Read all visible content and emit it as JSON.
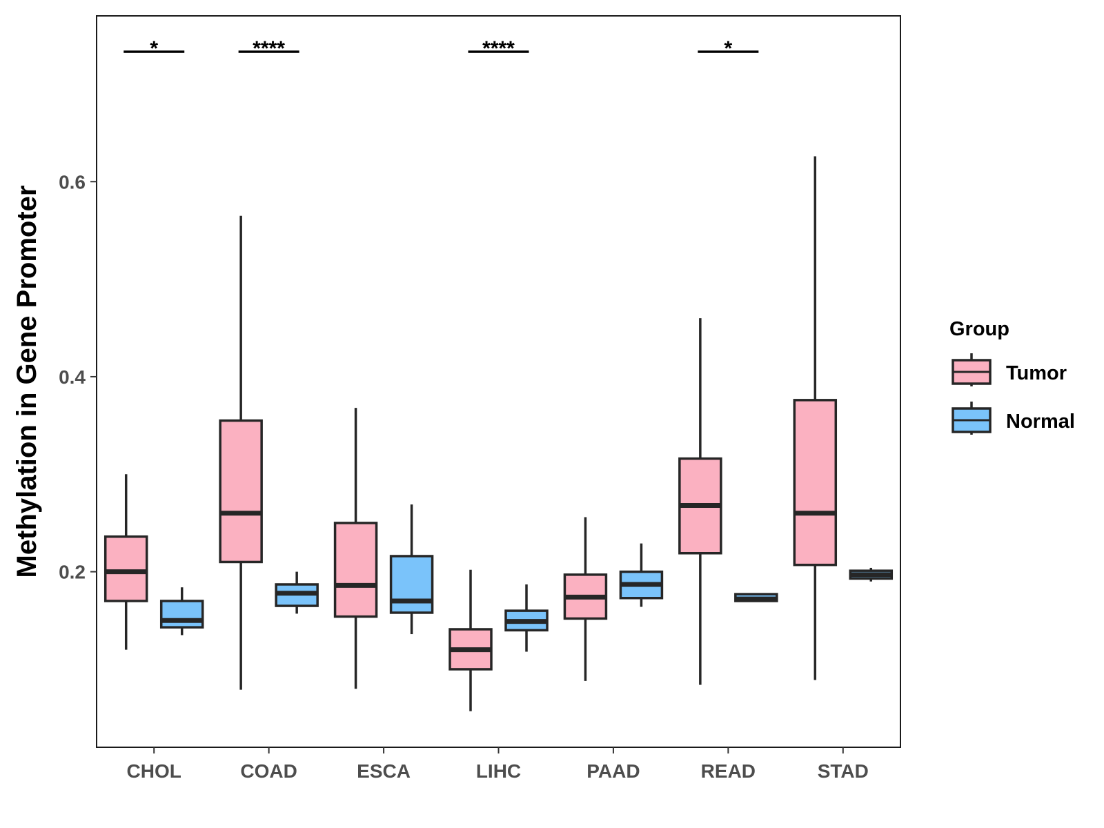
{
  "chart_data": {
    "type": "boxplot",
    "title": "",
    "xlabel": "",
    "ylabel": "Methylation in Gene Promoter",
    "ylim": [
      0.02,
      0.77
    ],
    "yticks": [
      0.2,
      0.4,
      0.6
    ],
    "ytick_labels": [
      "0.2",
      "0.4",
      "0.6"
    ],
    "grid": false,
    "categories": [
      "CHOL",
      "COAD",
      "ESCA",
      "LIHC",
      "PAAD",
      "READ",
      "STAD"
    ],
    "legend": {
      "title": "Group",
      "position": "right",
      "entries": [
        {
          "name": "Tumor",
          "color": "#fbb1c1"
        },
        {
          "name": "Normal",
          "color": "#7ac3fa"
        }
      ]
    },
    "series": [
      {
        "name": "Tumor",
        "color": "#fbb1c1",
        "boxes": [
          {
            "min": 0.12,
            "q1": 0.17,
            "median": 0.2,
            "q3": 0.236,
            "max": 0.3
          },
          {
            "min": 0.079,
            "q1": 0.21,
            "median": 0.26,
            "q3": 0.355,
            "max": 0.565
          },
          {
            "min": 0.08,
            "q1": 0.154,
            "median": 0.186,
            "q3": 0.25,
            "max": 0.368
          },
          {
            "min": 0.057,
            "q1": 0.1,
            "median": 0.12,
            "q3": 0.141,
            "max": 0.202
          },
          {
            "min": 0.088,
            "q1": 0.152,
            "median": 0.174,
            "q3": 0.197,
            "max": 0.256
          },
          {
            "min": 0.084,
            "q1": 0.219,
            "median": 0.268,
            "q3": 0.316,
            "max": 0.46
          },
          {
            "min": 0.089,
            "q1": 0.207,
            "median": 0.26,
            "q3": 0.376,
            "max": 0.626
          }
        ]
      },
      {
        "name": "Normal",
        "color": "#7ac3fa",
        "boxes": [
          {
            "min": 0.135,
            "q1": 0.143,
            "median": 0.15,
            "q3": 0.17,
            "max": 0.184
          },
          {
            "min": 0.157,
            "q1": 0.165,
            "median": 0.178,
            "q3": 0.187,
            "max": 0.2
          },
          {
            "min": 0.136,
            "q1": 0.158,
            "median": 0.17,
            "q3": 0.216,
            "max": 0.269
          },
          {
            "min": 0.118,
            "q1": 0.14,
            "median": 0.149,
            "q3": 0.16,
            "max": 0.187
          },
          {
            "min": 0.164,
            "q1": 0.173,
            "median": 0.187,
            "q3": 0.2,
            "max": 0.229
          },
          {
            "min": 0.17,
            "q1": 0.17,
            "median": 0.172,
            "q3": 0.177,
            "max": 0.177
          },
          {
            "min": 0.19,
            "q1": 0.193,
            "median": 0.197,
            "q3": 0.201,
            "max": 0.204
          }
        ]
      }
    ],
    "annotations": [
      {
        "category": "CHOL",
        "label": "*"
      },
      {
        "category": "COAD",
        "label": "****"
      },
      {
        "category": "LIHC",
        "label": "****"
      },
      {
        "category": "READ",
        "label": "*"
      }
    ]
  }
}
